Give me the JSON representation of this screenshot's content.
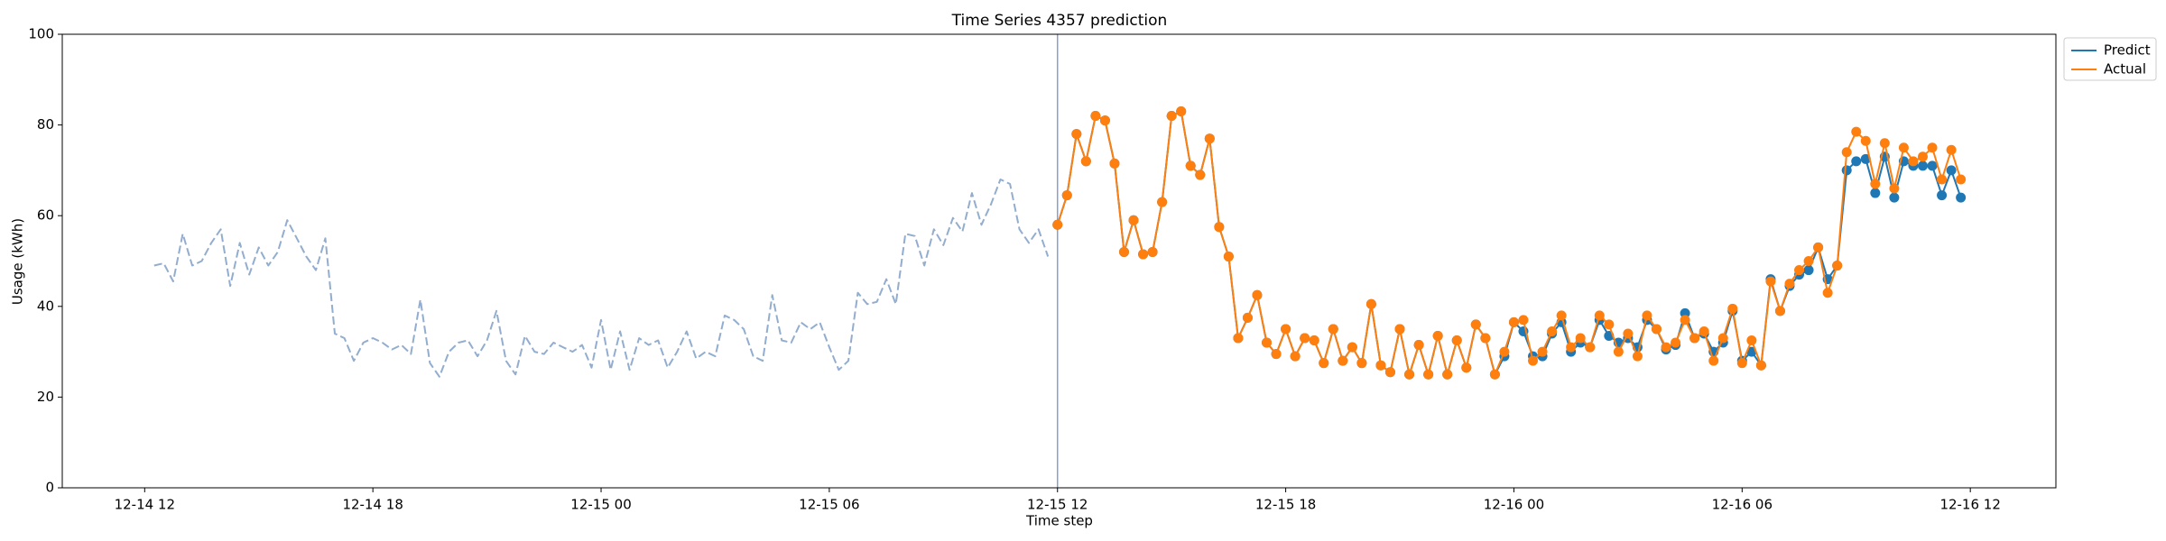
{
  "chart_data": {
    "type": "line",
    "title": "Time Series 4357 prediction",
    "x_label": "Time step",
    "y_label": "Usage (kWh)",
    "ylim": [
      0,
      100
    ],
    "yticks": [
      0,
      20,
      40,
      60,
      80,
      100
    ],
    "xlim": [
      "12-14 09:50",
      "12-16 14:15"
    ],
    "xticks": [
      "12-14 12",
      "12-14 18",
      "12-15 00",
      "12-15 06",
      "12-15 12",
      "12-15 18",
      "12-16 00",
      "12-16 06",
      "12-16 12"
    ],
    "legend": "upper right outside",
    "history": {
      "color": "#7f9fc5",
      "style": "dashed",
      "x": [
        "12-14 12:15",
        "12-14 12:30",
        "12-14 12:45",
        "12-14 13:00",
        "12-14 13:15",
        "12-14 13:30",
        "12-14 13:45",
        "12-14 14:00",
        "12-14 14:15",
        "12-14 14:30",
        "12-14 14:45",
        "12-14 15:00",
        "12-14 15:15",
        "12-14 15:30",
        "12-14 15:45",
        "12-14 16:00",
        "12-14 16:15",
        "12-14 16:30",
        "12-14 16:45",
        "12-14 17:00",
        "12-14 17:15",
        "12-14 17:30",
        "12-14 17:45",
        "12-14 18:00",
        "12-14 18:15",
        "12-14 18:30",
        "12-14 18:45",
        "12-14 19:00",
        "12-14 19:15",
        "12-14 19:30",
        "12-14 19:45",
        "12-14 20:00",
        "12-14 20:15",
        "12-14 20:30",
        "12-14 20:45",
        "12-14 21:00",
        "12-14 21:15",
        "12-14 21:30",
        "12-14 21:45",
        "12-14 22:00",
        "12-14 22:15",
        "12-14 22:30",
        "12-14 22:45",
        "12-14 23:00",
        "12-14 23:15",
        "12-14 23:30",
        "12-14 23:45",
        "12-15 00:00",
        "12-15 00:15",
        "12-15 00:30",
        "12-15 00:45",
        "12-15 01:00",
        "12-15 01:15",
        "12-15 01:30",
        "12-15 01:45",
        "12-15 02:00",
        "12-15 02:15",
        "12-15 02:30",
        "12-15 02:45",
        "12-15 03:00",
        "12-15 03:15",
        "12-15 03:30",
        "12-15 03:45",
        "12-15 04:00",
        "12-15 04:15",
        "12-15 04:30",
        "12-15 04:45",
        "12-15 05:00",
        "12-15 05:15",
        "12-15 05:30",
        "12-15 05:45",
        "12-15 06:00",
        "12-15 06:15",
        "12-15 06:30",
        "12-15 06:45",
        "12-15 07:00",
        "12-15 07:15",
        "12-15 07:30",
        "12-15 07:45",
        "12-15 08:00",
        "12-15 08:15",
        "12-15 08:30",
        "12-15 08:45",
        "12-15 09:00",
        "12-15 09:15",
        "12-15 09:30",
        "12-15 09:45",
        "12-15 10:00",
        "12-15 10:15",
        "12-15 10:30",
        "12-15 10:45",
        "12-15 11:00",
        "12-15 11:15",
        "12-15 11:30",
        "12-15 11:45"
      ],
      "values": [
        49,
        49.5,
        45.5,
        56,
        49,
        50,
        54,
        57,
        44.5,
        54,
        47,
        53,
        49,
        52,
        59,
        55,
        51,
        48,
        55,
        34,
        33,
        28,
        32,
        33,
        32,
        30.5,
        31.5,
        29.5,
        41.5,
        27.5,
        24.5,
        30,
        32,
        32.5,
        29,
        32.5,
        39,
        28,
        25,
        33.5,
        30,
        29.5,
        32,
        31,
        30,
        31.5,
        26.5,
        37,
        26,
        34.5,
        26,
        33,
        31.5,
        32.5,
        26.5,
        30,
        34.5,
        28.5,
        30,
        29,
        38,
        37,
        35,
        29,
        28,
        42.5,
        32.5,
        32,
        36.5,
        35,
        36.5,
        31,
        26,
        28,
        43,
        40.5,
        41,
        46,
        40.5,
        56,
        55.5,
        49,
        57,
        53.5,
        59.5,
        56.5,
        65,
        58,
        62.5,
        68,
        67,
        57,
        54,
        57,
        51
      ]
    },
    "x": [
      "12-15 12:00",
      "12-15 12:15",
      "12-15 12:30",
      "12-15 12:45",
      "12-15 13:00",
      "12-15 13:15",
      "12-15 13:30",
      "12-15 13:45",
      "12-15 14:00",
      "12-15 14:15",
      "12-15 14:30",
      "12-15 14:45",
      "12-15 15:00",
      "12-15 15:15",
      "12-15 15:30",
      "12-15 15:45",
      "12-15 16:00",
      "12-15 16:15",
      "12-15 16:30",
      "12-15 16:45",
      "12-15 17:00",
      "12-15 17:15",
      "12-15 17:30",
      "12-15 17:45",
      "12-15 18:00",
      "12-15 18:15",
      "12-15 18:30",
      "12-15 18:45",
      "12-15 19:00",
      "12-15 19:15",
      "12-15 19:30",
      "12-15 19:45",
      "12-15 20:00",
      "12-15 20:15",
      "12-15 20:30",
      "12-15 20:45",
      "12-15 21:00",
      "12-15 21:15",
      "12-15 21:30",
      "12-15 21:45",
      "12-15 22:00",
      "12-15 22:15",
      "12-15 22:30",
      "12-15 22:45",
      "12-15 23:00",
      "12-15 23:15",
      "12-15 23:30",
      "12-15 23:45",
      "12-16 00:00",
      "12-16 00:15",
      "12-16 00:30",
      "12-16 00:45",
      "12-16 01:00",
      "12-16 01:15",
      "12-16 01:30",
      "12-16 01:45",
      "12-16 02:00",
      "12-16 02:15",
      "12-16 02:30",
      "12-16 02:45",
      "12-16 03:00",
      "12-16 03:15",
      "12-16 03:30",
      "12-16 03:45",
      "12-16 04:00",
      "12-16 04:15",
      "12-16 04:30",
      "12-16 04:45",
      "12-16 05:00",
      "12-16 05:15",
      "12-16 05:30",
      "12-16 05:45",
      "12-16 06:00",
      "12-16 06:15",
      "12-16 06:30",
      "12-16 06:45",
      "12-16 07:00",
      "12-16 07:15",
      "12-16 07:30",
      "12-16 07:45",
      "12-16 08:00",
      "12-16 08:15",
      "12-16 08:30",
      "12-16 08:45",
      "12-16 09:00",
      "12-16 09:15",
      "12-16 09:30",
      "12-16 09:45",
      "12-16 10:00",
      "12-16 10:15",
      "12-16 10:30",
      "12-16 10:45",
      "12-16 11:00",
      "12-16 11:15",
      "12-16 11:30",
      "12-16 11:45"
    ],
    "series": [
      {
        "name": "Predict",
        "color": "#1f77b4",
        "values": [
          58,
          64.5,
          78,
          72,
          82,
          81,
          71.5,
          52,
          59,
          51.5,
          52,
          63,
          82,
          83,
          71,
          69,
          77,
          57.5,
          51,
          33,
          37.5,
          42.5,
          32,
          29.5,
          35,
          29,
          33,
          32.5,
          27.5,
          35,
          28,
          31,
          27.5,
          40.5,
          27,
          25.5,
          35,
          25,
          31.5,
          25,
          33.5,
          25,
          32.5,
          26.5,
          36,
          33,
          25,
          29,
          36.5,
          34.5,
          29,
          29,
          34,
          36.5,
          30,
          32,
          31,
          37,
          33.5,
          32,
          33,
          31,
          37,
          35,
          30.5,
          31.5,
          38.5,
          33,
          34,
          30,
          32,
          39,
          28,
          30,
          27,
          46,
          39,
          44.5,
          47,
          48,
          53,
          46,
          49,
          70,
          72,
          72.5,
          65,
          73,
          64,
          72,
          71,
          71,
          71,
          64.5,
          70,
          64
        ]
      },
      {
        "name": "Actual",
        "color": "#ff7f0e",
        "values": [
          58,
          64.5,
          78,
          72,
          82,
          81,
          71.5,
          52,
          59,
          51.5,
          52,
          63,
          82,
          83,
          71,
          69,
          77,
          57.5,
          51,
          33,
          37.5,
          42.5,
          32,
          29.5,
          35,
          29,
          33,
          32.5,
          27.5,
          35,
          28,
          31,
          27.5,
          40.5,
          27,
          25.5,
          35,
          25,
          31.5,
          25,
          33.5,
          25,
          32.5,
          26.5,
          36,
          33,
          25,
          30,
          36.5,
          37,
          28,
          30,
          34.5,
          38,
          31,
          33,
          31,
          38,
          36,
          30,
          34,
          29,
          38,
          35,
          31,
          32,
          37,
          33,
          34.5,
          28,
          33,
          39.5,
          27.5,
          32.5,
          27,
          45.5,
          39,
          45,
          48,
          50,
          53,
          43,
          49,
          74,
          78.5,
          76.5,
          67,
          76,
          66,
          75,
          72,
          73,
          75,
          68,
          74.5,
          68
        ]
      }
    ]
  }
}
